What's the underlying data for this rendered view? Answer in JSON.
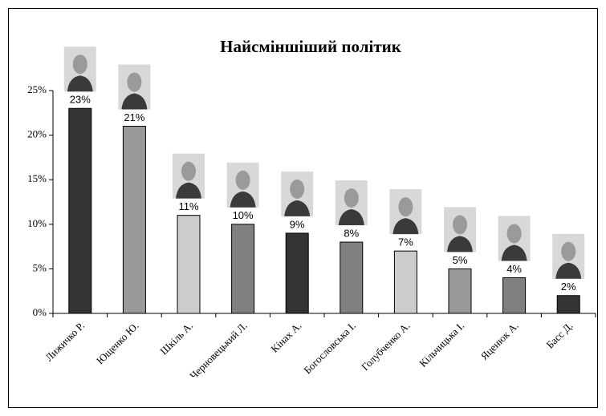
{
  "chart_data": {
    "type": "bar",
    "title": "Найсміншіший політик",
    "categories": [
      "Лижичко Р.",
      "Ющенко Ю.",
      "Шкіль А.",
      "Черновецький Л.",
      "Кінах А.",
      "Богословська І.",
      "Голубченко А.",
      "Кільчицька І.",
      "Яценюк А.",
      "Басс Д."
    ],
    "values": [
      23,
      21,
      11,
      10,
      9,
      8,
      7,
      5,
      4,
      2
    ],
    "value_labels": [
      "23%",
      "21%",
      "11%",
      "10%",
      "9%",
      "8%",
      "7%",
      "5%",
      "4%",
      "2%"
    ],
    "colors": [
      "#333333",
      "#999999",
      "#cccccc",
      "#808080",
      "#333333",
      "#808080",
      "#cccccc",
      "#999999",
      "#808080",
      "#333333"
    ],
    "ylim": [
      0,
      25
    ],
    "yticks": [
      {
        "value": 0,
        "label": "0%"
      },
      {
        "value": 5,
        "label": "5%"
      },
      {
        "value": 10,
        "label": "10%"
      },
      {
        "value": 15,
        "label": "15%"
      },
      {
        "value": 20,
        "label": "20%"
      },
      {
        "value": 25,
        "label": "25%"
      }
    ],
    "grid": false
  }
}
